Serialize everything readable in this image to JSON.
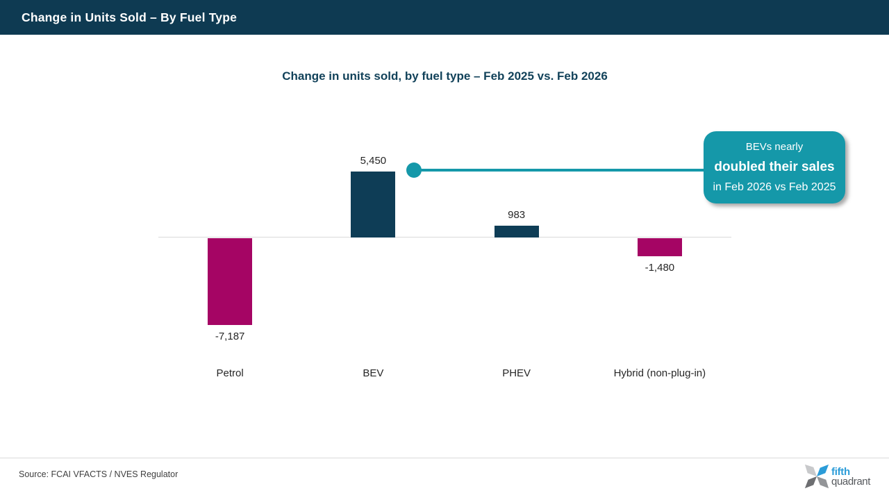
{
  "header": {
    "title": "Change in Units Sold – By Fuel Type",
    "bg": "#0e3a52"
  },
  "chart_data": {
    "type": "bar",
    "title": "Change in units sold, by fuel type – Feb 2025 vs. Feb 2026",
    "categories": [
      "Petrol",
      "BEV",
      "PHEV",
      "Hybrid (non-plug-in)"
    ],
    "values": [
      -7187,
      5450,
      983,
      -1480
    ],
    "value_labels": [
      "-7,187",
      "5,450",
      "983",
      "-1,480"
    ],
    "xlabel": "",
    "ylabel": "",
    "ylim": [
      -8000,
      6000
    ],
    "grid": false,
    "legend": false,
    "baseline_color": "#d9d9d9",
    "bar_colors": {
      "positive": "#0e3d56",
      "negative": "#a50564"
    },
    "annotation": {
      "line1": "BEVs nearly",
      "line2_bold": "doubled their sales",
      "line3": "in Feb 2026 vs Feb 2025",
      "color": "#1598a9",
      "target": "BEV"
    }
  },
  "footer": {
    "source": "Source: FCAI VFACTS / NVES Regulator",
    "logo_line1": "fifth",
    "logo_line2": "quadrant",
    "logo_blue": "#2b9cd8"
  }
}
